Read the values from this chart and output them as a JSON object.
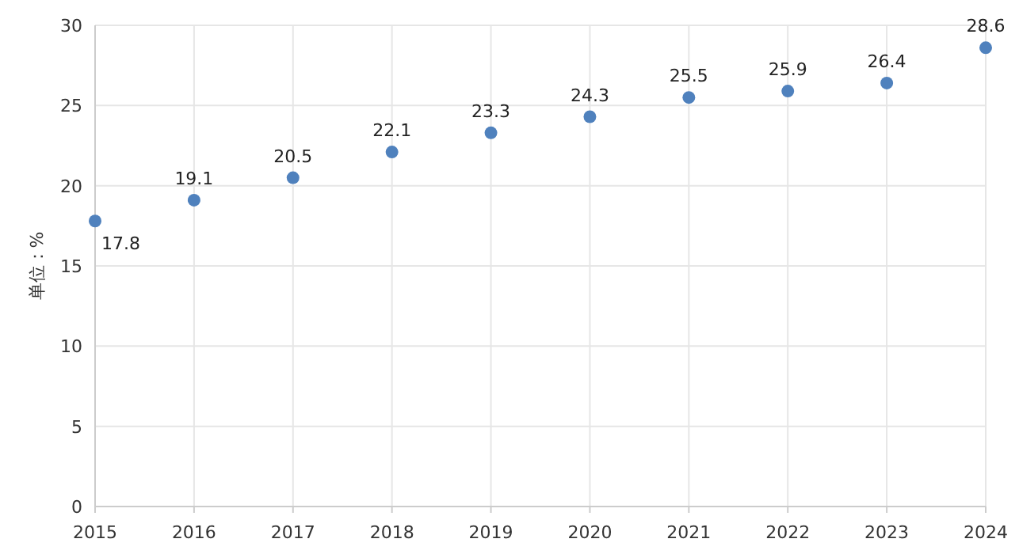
{
  "chart_data": {
    "type": "scatter",
    "ylabel": "单位：%",
    "x": [
      2015,
      2016,
      2017,
      2018,
      2019,
      2020,
      2021,
      2022,
      2023,
      2024
    ],
    "series": [
      {
        "color": "#4f81bd",
        "values": [
          17.8,
          19.1,
          20.5,
          22.1,
          23.3,
          24.3,
          25.5,
          25.9,
          26.4,
          28.6
        ]
      }
    ],
    "xlim": [
      2015,
      2024
    ],
    "xticks": [
      2015,
      2016,
      2017,
      2018,
      2019,
      2020,
      2021,
      2022,
      2023,
      2024
    ],
    "ylim": [
      0,
      30
    ],
    "yticks": [
      0,
      5,
      10,
      15,
      20,
      25,
      30
    ],
    "grid": true,
    "marker": "circle",
    "data_labels": true
  }
}
